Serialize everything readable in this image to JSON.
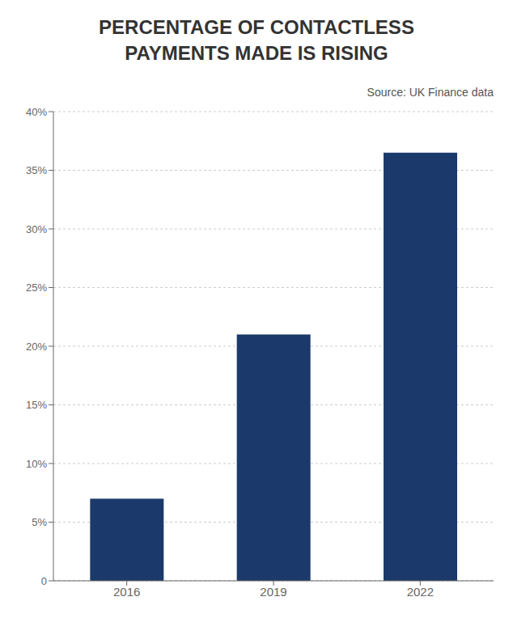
{
  "chart_data": {
    "type": "bar",
    "title": "PERCENTAGE OF CONTACTLESS\nPAYMENTS MADE IS RISING",
    "annotation": "Source: UK Finance data",
    "categories": [
      "2016",
      "2019",
      "2022"
    ],
    "values": [
      7.0,
      21.0,
      36.5
    ],
    "color": "#1b3a6b",
    "ylim": [
      0,
      40
    ],
    "yticks": [
      0,
      {
        "value": 5,
        "label": "5%"
      },
      {
        "value": 10,
        "label": "10%"
      },
      {
        "value": 15,
        "label": "15%"
      },
      {
        "value": 20,
        "label": "20%"
      },
      {
        "value": 25,
        "label": "25%"
      },
      {
        "value": 30,
        "label": "30%"
      },
      {
        "value": 35,
        "label": "35%"
      },
      {
        "value": 40,
        "label": "40%"
      }
    ],
    "grid": true
  }
}
